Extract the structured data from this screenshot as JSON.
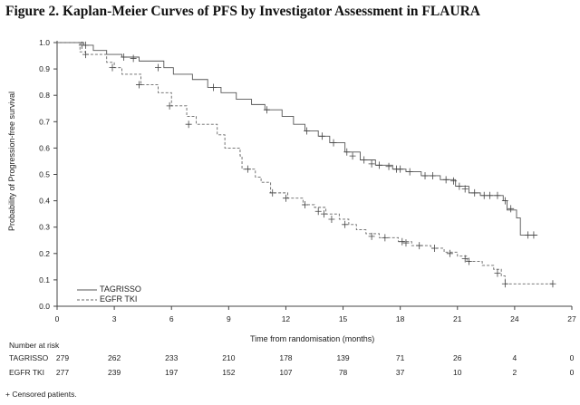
{
  "figure_title": "Figure 2. Kaplan-Meier Curves of PFS by Investigator Assessment in FLAURA",
  "footnote": "+ Censored patients.",
  "risk_table": {
    "heading": "Number at risk",
    "rows": [
      {
        "label": "TAGRISSO",
        "values": [
          "279",
          "262",
          "233",
          "210",
          "178",
          "139",
          "71",
          "26",
          "4",
          "0"
        ]
      },
      {
        "label": "EGFR TKI",
        "values": [
          "277",
          "239",
          "197",
          "152",
          "107",
          "78",
          "37",
          "10",
          "2",
          "0"
        ]
      }
    ]
  },
  "chart_data": {
    "type": "line",
    "title": "Figure 2. Kaplan-Meier Curves of PFS by Investigator Assessment in FLAURA",
    "xlabel": "Time from randomisation (months)",
    "ylabel": "Probability of Progression-free survival",
    "xlim": [
      0,
      27
    ],
    "ylim": [
      0,
      1
    ],
    "xticks": [
      "0",
      "3",
      "6",
      "9",
      "12",
      "15",
      "18",
      "21",
      "24",
      "27"
    ],
    "yticks": [
      "0.0",
      "0.1",
      "0.2",
      "0.3",
      "0.4",
      "0.5",
      "0.6",
      "0.7",
      "0.8",
      "0.9",
      "1.0"
    ],
    "legend_position": "bottom-left",
    "series": [
      {
        "name": "TAGRISSO",
        "style": "solid",
        "color": "#555555",
        "step_points": [
          [
            0,
            1.0
          ],
          [
            1.4,
            0.99
          ],
          [
            1.9,
            0.97
          ],
          [
            2.6,
            0.955
          ],
          [
            3.4,
            0.945
          ],
          [
            4.3,
            0.93
          ],
          [
            5.6,
            0.905
          ],
          [
            6.1,
            0.88
          ],
          [
            7.1,
            0.86
          ],
          [
            7.9,
            0.83
          ],
          [
            8.6,
            0.81
          ],
          [
            9.4,
            0.785
          ],
          [
            10.2,
            0.765
          ],
          [
            10.9,
            0.745
          ],
          [
            11.8,
            0.72
          ],
          [
            12.4,
            0.69
          ],
          [
            13.0,
            0.665
          ],
          [
            13.7,
            0.645
          ],
          [
            14.3,
            0.62
          ],
          [
            15.1,
            0.585
          ],
          [
            15.9,
            0.555
          ],
          [
            16.7,
            0.535
          ],
          [
            17.6,
            0.52
          ],
          [
            18.3,
            0.51
          ],
          [
            19.1,
            0.495
          ],
          [
            20.1,
            0.48
          ],
          [
            20.9,
            0.455
          ],
          [
            21.6,
            0.43
          ],
          [
            22.2,
            0.42
          ],
          [
            22.9,
            0.42
          ],
          [
            23.4,
            0.4
          ],
          [
            23.6,
            0.365
          ],
          [
            24.1,
            0.335
          ],
          [
            24.3,
            0.27
          ],
          [
            25.2,
            0.27
          ]
        ],
        "censored": [
          [
            1.3,
            0.99
          ],
          [
            1.5,
            0.99
          ],
          [
            3.5,
            0.945
          ],
          [
            4.0,
            0.94
          ],
          [
            5.3,
            0.905
          ],
          [
            8.2,
            0.83
          ],
          [
            11.0,
            0.745
          ],
          [
            13.1,
            0.665
          ],
          [
            13.9,
            0.645
          ],
          [
            14.5,
            0.62
          ],
          [
            15.2,
            0.585
          ],
          [
            15.5,
            0.57
          ],
          [
            16.1,
            0.555
          ],
          [
            16.5,
            0.54
          ],
          [
            16.9,
            0.535
          ],
          [
            17.4,
            0.53
          ],
          [
            17.8,
            0.52
          ],
          [
            18.0,
            0.52
          ],
          [
            18.5,
            0.51
          ],
          [
            19.3,
            0.495
          ],
          [
            19.7,
            0.495
          ],
          [
            20.4,
            0.48
          ],
          [
            20.8,
            0.475
          ],
          [
            21.1,
            0.455
          ],
          [
            21.4,
            0.445
          ],
          [
            21.9,
            0.43
          ],
          [
            22.4,
            0.42
          ],
          [
            22.7,
            0.42
          ],
          [
            23.1,
            0.42
          ],
          [
            23.5,
            0.4
          ],
          [
            23.8,
            0.37
          ],
          [
            24.7,
            0.27
          ],
          [
            25.0,
            0.27
          ]
        ]
      },
      {
        "name": "EGFR TKI",
        "style": "dashed",
        "color": "#666666",
        "step_points": [
          [
            0,
            1.0
          ],
          [
            1.2,
            0.965
          ],
          [
            1.5,
            0.955
          ],
          [
            2.6,
            0.925
          ],
          [
            3.0,
            0.905
          ],
          [
            3.4,
            0.88
          ],
          [
            4.4,
            0.84
          ],
          [
            5.3,
            0.81
          ],
          [
            6.0,
            0.76
          ],
          [
            6.8,
            0.72
          ],
          [
            7.3,
            0.69
          ],
          [
            8.4,
            0.65
          ],
          [
            8.8,
            0.6
          ],
          [
            9.6,
            0.57
          ],
          [
            9.7,
            0.52
          ],
          [
            10.4,
            0.49
          ],
          [
            10.7,
            0.47
          ],
          [
            11.2,
            0.43
          ],
          [
            12.1,
            0.41
          ],
          [
            12.9,
            0.385
          ],
          [
            13.5,
            0.375
          ],
          [
            14.1,
            0.35
          ],
          [
            14.8,
            0.33
          ],
          [
            15.3,
            0.31
          ],
          [
            15.7,
            0.29
          ],
          [
            16.2,
            0.275
          ],
          [
            16.9,
            0.26
          ],
          [
            17.9,
            0.245
          ],
          [
            18.6,
            0.23
          ],
          [
            19.6,
            0.22
          ],
          [
            20.3,
            0.205
          ],
          [
            21.0,
            0.19
          ],
          [
            21.5,
            0.17
          ],
          [
            22.3,
            0.155
          ],
          [
            22.9,
            0.14
          ],
          [
            23.3,
            0.115
          ],
          [
            23.5,
            0.085
          ],
          [
            26.0,
            0.085
          ]
        ],
        "censored": [
          [
            1.5,
            0.955
          ],
          [
            2.9,
            0.905
          ],
          [
            4.3,
            0.84
          ],
          [
            5.9,
            0.76
          ],
          [
            6.9,
            0.69
          ],
          [
            10.0,
            0.52
          ],
          [
            11.3,
            0.43
          ],
          [
            12.0,
            0.41
          ],
          [
            13.0,
            0.385
          ],
          [
            13.7,
            0.36
          ],
          [
            14.0,
            0.35
          ],
          [
            14.4,
            0.33
          ],
          [
            15.1,
            0.31
          ],
          [
            16.5,
            0.265
          ],
          [
            17.2,
            0.26
          ],
          [
            18.1,
            0.245
          ],
          [
            18.3,
            0.24
          ],
          [
            19.0,
            0.23
          ],
          [
            19.8,
            0.22
          ],
          [
            20.6,
            0.2
          ],
          [
            21.4,
            0.18
          ],
          [
            21.6,
            0.17
          ],
          [
            23.1,
            0.125
          ],
          [
            23.5,
            0.085
          ],
          [
            26.0,
            0.085
          ]
        ]
      }
    ]
  }
}
